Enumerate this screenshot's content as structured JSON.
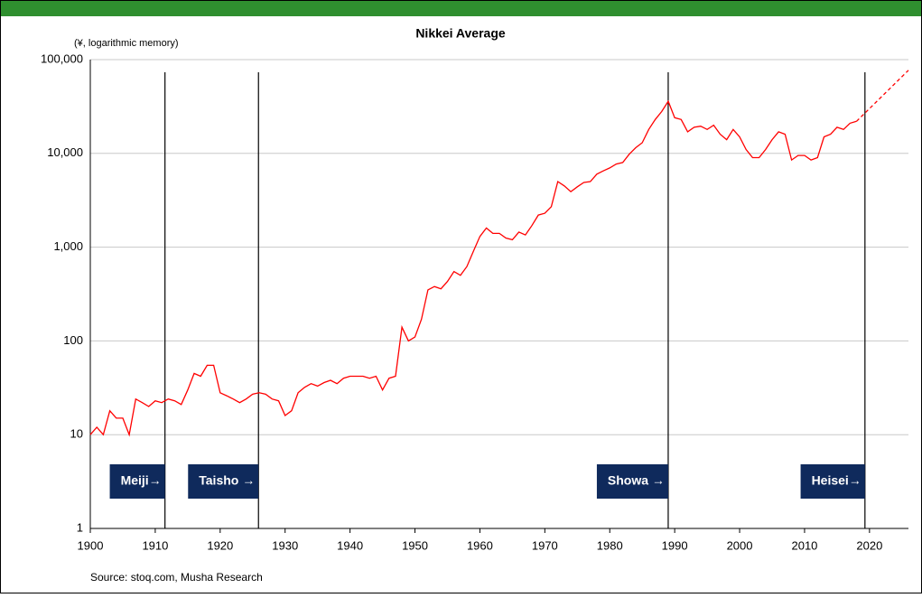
{
  "chart_data": {
    "type": "line",
    "title": "Nikkei Average",
    "y_label": "(¥, logarithmic memory)",
    "source": "Source: stoq.com, Musha Research",
    "log_y": true,
    "grid": true,
    "xlim": [
      1900,
      2026
    ],
    "xticks": [
      1900,
      1910,
      1920,
      1930,
      1940,
      1950,
      1960,
      1970,
      1980,
      1990,
      2000,
      2010,
      2020
    ],
    "ylim": [
      1,
      100000
    ],
    "yticks": [
      1,
      10,
      100,
      {
        "value": 1000,
        "label": "1,000"
      },
      {
        "value": 10000,
        "label": "10,000"
      },
      {
        "value": 100000,
        "label": "100,000"
      }
    ],
    "series": [
      {
        "color": "#ff0000",
        "dashed": false,
        "x": [
          1900,
          1901,
          1902,
          1903,
          1904,
          1905,
          1906,
          1907,
          1908,
          1909,
          1910,
          1911,
          1912,
          1913,
          1914,
          1915,
          1916,
          1917,
          1918,
          1919,
          1920,
          1921,
          1922,
          1923,
          1924,
          1925,
          1926,
          1927,
          1928,
          1929,
          1930,
          1931,
          1932,
          1933,
          1934,
          1935,
          1936,
          1937,
          1938,
          1939,
          1940,
          1941,
          1942,
          1943,
          1944,
          1945,
          1946,
          1947,
          1948,
          1949,
          1950,
          1951,
          1952,
          1953,
          1954,
          1955,
          1956,
          1957,
          1958,
          1959,
          1960,
          1961,
          1962,
          1963,
          1964,
          1965,
          1966,
          1967,
          1968,
          1969,
          1970,
          1971,
          1972,
          1973,
          1974,
          1975,
          1976,
          1977,
          1978,
          1979,
          1980,
          1981,
          1982,
          1983,
          1984,
          1985,
          1986,
          1987,
          1988,
          1989,
          1990,
          1991,
          1992,
          1993,
          1994,
          1995,
          1996,
          1997,
          1998,
          1999,
          2000,
          2001,
          2002,
          2003,
          2004,
          2005,
          2006,
          2007,
          2008,
          2009,
          2010,
          2011,
          2012,
          2013,
          2014,
          2015,
          2016,
          2017,
          2018
        ],
        "values": [
          10,
          12,
          10,
          18,
          15,
          15,
          10,
          24,
          22,
          20,
          23,
          22,
          24,
          23,
          21,
          30,
          45,
          42,
          55,
          55,
          28,
          26,
          24,
          22,
          24,
          27,
          28,
          27,
          24,
          23,
          16,
          18,
          28,
          32,
          35,
          33,
          36,
          38,
          35,
          40,
          42,
          42,
          42,
          40,
          42,
          30,
          40,
          42,
          140,
          100,
          110,
          170,
          350,
          380,
          360,
          430,
          550,
          500,
          620,
          900,
          1300,
          1600,
          1400,
          1400,
          1250,
          1200,
          1450,
          1350,
          1700,
          2200,
          2300,
          2700,
          5000,
          4500,
          3900,
          4400,
          4900,
          5000,
          6000,
          6500,
          7000,
          7700,
          8000,
          9800,
          11500,
          13000,
          18000,
          23000,
          28000,
          36000,
          24000,
          23000,
          17000,
          19000,
          19500,
          18000,
          20000,
          16000,
          14000,
          18000,
          15000,
          11000,
          9000,
          9000,
          11000,
          14000,
          17000,
          16000,
          8500,
          9500,
          9500,
          8500,
          9000,
          15000,
          16000,
          19000,
          18000,
          21000,
          22000
        ]
      },
      {
        "color": "#ff0000",
        "dashed": true,
        "x": [
          2018,
          2026
        ],
        "values": [
          22000,
          77000
        ]
      }
    ],
    "eras": [
      {
        "x": 1911.5,
        "label": "Meiji→"
      },
      {
        "x": 1925.9,
        "label": "Taisho →"
      },
      {
        "x": 1989,
        "label": "Showa →"
      },
      {
        "x": 2019.3,
        "label": "Heisei→"
      }
    ]
  }
}
